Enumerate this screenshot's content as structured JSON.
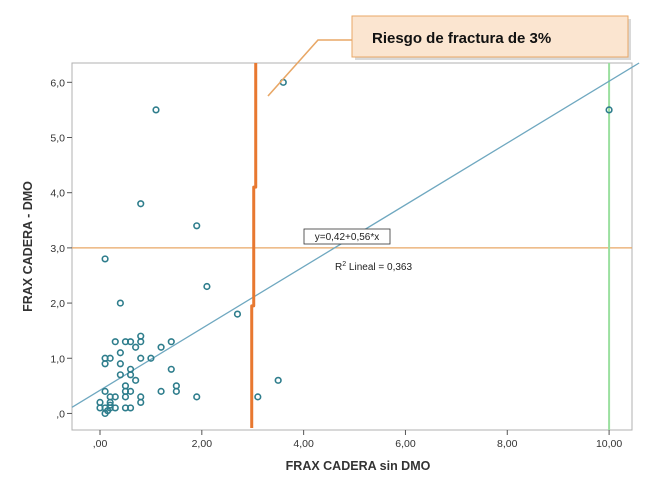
{
  "chart_data": {
    "type": "scatter",
    "xlabel": "FRAX CADERA sin DMO",
    "ylabel": "FRAX CADERA - DMO",
    "xlim": [
      -0.55,
      10.45
    ],
    "ylim": [
      -0.3,
      6.35
    ],
    "x_ticks": [
      0,
      2,
      4,
      6,
      8,
      10
    ],
    "x_tick_labels": [
      ",00",
      "2,00",
      "4,00",
      "6,00",
      "8,00",
      "10,00"
    ],
    "y_ticks": [
      0,
      1,
      2,
      3,
      4,
      5,
      6
    ],
    "y_tick_labels": [
      ",0",
      "1,0",
      "2,0",
      "3,0",
      "4,0",
      "5,0",
      "6,0"
    ],
    "points": [
      [
        1.1,
        5.5
      ],
      [
        3.6,
        6.0
      ],
      [
        10.0,
        5.5
      ],
      [
        0.8,
        3.8
      ],
      [
        1.9,
        3.4
      ],
      [
        0.1,
        2.8
      ],
      [
        2.1,
        2.3
      ],
      [
        0.4,
        2.0
      ],
      [
        2.7,
        1.8
      ],
      [
        3.5,
        0.6
      ],
      [
        3.1,
        0.3
      ],
      [
        1.9,
        0.3
      ],
      [
        1.5,
        0.4
      ],
      [
        1.5,
        0.5
      ],
      [
        1.2,
        0.4
      ],
      [
        1.4,
        0.8
      ],
      [
        1.4,
        1.3
      ],
      [
        1.2,
        1.2
      ],
      [
        1.0,
        1.0
      ],
      [
        0.8,
        1.4
      ],
      [
        0.8,
        1.3
      ],
      [
        0.6,
        1.3
      ],
      [
        0.5,
        1.3
      ],
      [
        0.3,
        1.3
      ],
      [
        0.7,
        1.2
      ],
      [
        0.4,
        1.1
      ],
      [
        0.1,
        1.0
      ],
      [
        0.2,
        1.0
      ],
      [
        0.1,
        0.9
      ],
      [
        0.4,
        0.9
      ],
      [
        0.6,
        0.8
      ],
      [
        0.6,
        0.7
      ],
      [
        0.4,
        0.7
      ],
      [
        0.7,
        0.6
      ],
      [
        0.5,
        0.5
      ],
      [
        0.5,
        0.4
      ],
      [
        0.6,
        0.4
      ],
      [
        0.8,
        0.3
      ],
      [
        0.5,
        0.3
      ],
      [
        0.3,
        0.3
      ],
      [
        0.2,
        0.3
      ],
      [
        0.1,
        0.4
      ],
      [
        0.2,
        0.2
      ],
      [
        0.8,
        0.2
      ],
      [
        0.6,
        0.1
      ],
      [
        0.5,
        0.1
      ],
      [
        0.3,
        0.1
      ],
      [
        0.2,
        0.1
      ],
      [
        0.1,
        0.1
      ],
      [
        0.0,
        0.1
      ],
      [
        0.1,
        0.0
      ],
      [
        0.0,
        0.2
      ],
      [
        0.2,
        0.15
      ],
      [
        0.15,
        0.05
      ],
      [
        0.8,
        1.0
      ]
    ],
    "fit_line": {
      "intercept": 0.42,
      "slope": 0.56,
      "label": "y=0,42+0,56*x"
    },
    "r2_label": {
      "prefix": "R",
      "superscript": "2",
      "text": " Lineal = 0,363"
    },
    "reference_lines": {
      "horizontal_y": 3.0,
      "vertical_x_green": 10.0,
      "threshold_x": 3.0
    },
    "annotation": "Riesgo de fractura de 3%",
    "colors": {
      "points": "#2e7d8c",
      "fit_line": "#6fa8c0",
      "horizontal_line": "#e8a766",
      "threshold": "#e87830",
      "green_line": "#9be0a0",
      "frame": "#b0b0b0",
      "callout_fill": "#fbe5d0",
      "callout_border": "#e8a766"
    }
  }
}
